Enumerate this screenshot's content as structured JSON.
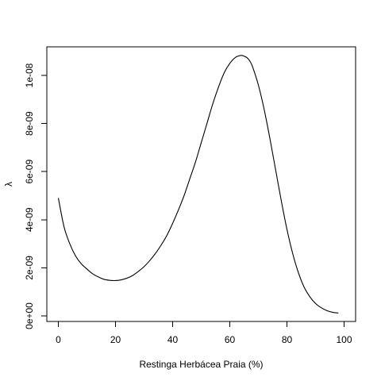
{
  "chart_data": {
    "type": "line",
    "title": "",
    "xlabel": "Restinga Herbácea Praia (%)",
    "ylabel": "λ",
    "xlim": [
      0,
      100
    ],
    "ylim": [
      0,
      1.1e-08
    ],
    "x_ticks": [
      0,
      20,
      40,
      60,
      80,
      100
    ],
    "x_tick_labels": [
      "0",
      "20",
      "40",
      "60",
      "80",
      "100"
    ],
    "y_ticks": [
      0,
      2e-09,
      4e-09,
      6e-09,
      8e-09,
      1e-08
    ],
    "y_tick_labels": [
      "0e+00",
      "2e-09",
      "4e-09",
      "6e-09",
      "8e-09",
      "1e-08"
    ],
    "grid": false,
    "series": [
      {
        "x": [
          0,
          2,
          4,
          6,
          8,
          10,
          12,
          14,
          16,
          18,
          20,
          22,
          24,
          26,
          28,
          30,
          32,
          34,
          36,
          38,
          40,
          42,
          44,
          46,
          48,
          50,
          52,
          54,
          56,
          58,
          60,
          62,
          64,
          65,
          66,
          67,
          68,
          70,
          72,
          74,
          76,
          78,
          80,
          82,
          84,
          86,
          88,
          90,
          92,
          94,
          96,
          98
        ],
        "values": [
          4.9e-09,
          3.7e-09,
          3e-09,
          2.5e-09,
          2.17e-09,
          1.95e-09,
          1.75e-09,
          1.62e-09,
          1.52e-09,
          1.48e-09,
          1.47e-09,
          1.5e-09,
          1.57e-09,
          1.68e-09,
          1.85e-09,
          2.05e-09,
          2.3e-09,
          2.6e-09,
          2.95e-09,
          3.35e-09,
          3.85e-09,
          4.4e-09,
          5e-09,
          5.7e-09,
          6.4e-09,
          7.2e-09,
          8e-09,
          8.8e-09,
          9.5e-09,
          1.01e-08,
          1.05e-08,
          1.075e-08,
          1.083e-08,
          1.08e-08,
          1.074e-08,
          1.06e-08,
          1.035e-08,
          9.6e-09,
          8.6e-09,
          7.4e-09,
          6.1e-09,
          4.8e-09,
          3.6e-09,
          2.6e-09,
          1.8e-09,
          1.2e-09,
          8e-10,
          5.2e-10,
          3.4e-10,
          2.2e-10,
          1.5e-10,
          1.2e-10
        ]
      }
    ]
  }
}
